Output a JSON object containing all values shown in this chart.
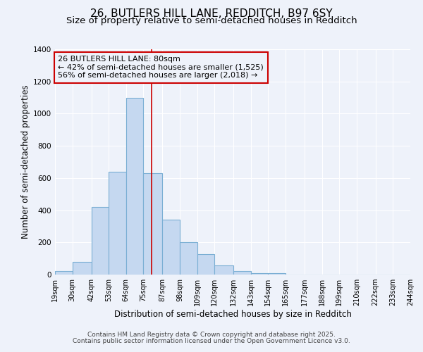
{
  "title1": "26, BUTLERS HILL LANE, REDDITCH, B97 6SY",
  "title2": "Size of property relative to semi-detached houses in Redditch",
  "xlabel": "Distribution of semi-detached houses by size in Redditch",
  "ylabel": "Number of semi-detached properties",
  "bin_edges": [
    19,
    30,
    42,
    53,
    64,
    75,
    87,
    98,
    109,
    120,
    132,
    143,
    154,
    165,
    177,
    188,
    199,
    210,
    222,
    233,
    244
  ],
  "bar_heights": [
    20,
    80,
    420,
    640,
    1100,
    630,
    340,
    200,
    125,
    55,
    20,
    10,
    10,
    0,
    0,
    0,
    0,
    0,
    0,
    0
  ],
  "bar_color": "#c5d8f0",
  "bar_edge_color": "#7bafd4",
  "bar_edge_width": 0.8,
  "property_size": 80,
  "vline_color": "#cc0000",
  "annotation_title": "26 BUTLERS HILL LANE: 80sqm",
  "annotation_line1": "← 42% of semi-detached houses are smaller (1,525)",
  "annotation_line2": "56% of semi-detached houses are larger (2,018) →",
  "annotation_box_color": "#cc0000",
  "ylim": [
    0,
    1400
  ],
  "yticks": [
    0,
    200,
    400,
    600,
    800,
    1000,
    1200,
    1400
  ],
  "footer1": "Contains HM Land Registry data © Crown copyright and database right 2025.",
  "footer2": "Contains public sector information licensed under the Open Government Licence v3.0.",
  "background_color": "#eef2fa",
  "grid_color": "#ffffff",
  "title_fontsize": 11,
  "subtitle_fontsize": 9.5,
  "tick_label_fontsize": 7,
  "axis_label_fontsize": 8.5,
  "annotation_fontsize": 8,
  "footer_fontsize": 6.5
}
